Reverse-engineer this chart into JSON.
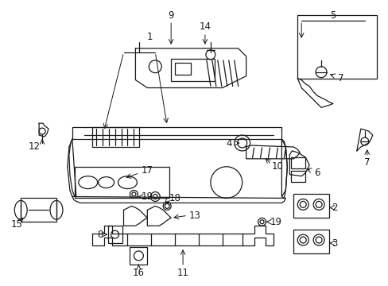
{
  "bg_color": "#ffffff",
  "line_color": "#1a1a1a",
  "label_fontsize": 8.5,
  "figsize": [
    4.89,
    3.6
  ],
  "dpi": 100
}
